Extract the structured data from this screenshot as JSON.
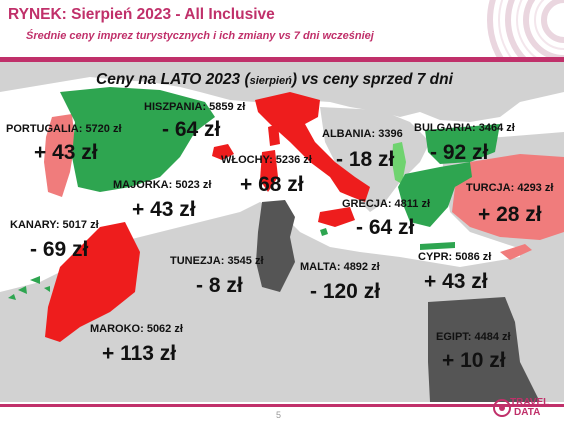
{
  "header": {
    "title": "RYNEK: Sierpień 2023 - All Inclusive",
    "subtitle": "Średnie ceny imprez turystycznych i ich zmiany vs 7 dni wcześniej"
  },
  "map_title": {
    "part1": "Ceny na LATO 2023 (",
    "highlight": "sierpień",
    "part2": ") vs ceny sprzed 7 dni"
  },
  "colors": {
    "brand": "#c0306a",
    "increase": "#ee1d1d",
    "decrease": "#2ea550",
    "no_change": "#555555",
    "land": "#d2d2d2",
    "sea": "#ffffff",
    "increase_light": "#f07c7c",
    "decrease_light": "#6fd36f"
  },
  "destinations": [
    {
      "key": "portugalia",
      "label": "PORTUGALIA: 5720 zł",
      "change": "+ 43 zł"
    },
    {
      "key": "hiszpania",
      "label": "HISZPANIA: 5859 zł",
      "change": "- 64 zł"
    },
    {
      "key": "majorka",
      "label": "MAJORKA: 5023 zł",
      "change": "+ 43 zł"
    },
    {
      "key": "wlochy",
      "label": "WŁOCHY: 5236 zł",
      "change": "+ 68 zł"
    },
    {
      "key": "albania",
      "label": "ALBANIA: 3396",
      "change": "- 18 zł"
    },
    {
      "key": "bulgaria",
      "label": "BULGARIA: 3464 zł",
      "change": "- 92 zł"
    },
    {
      "key": "turcja",
      "label": "TURCJA: 4293 zł",
      "change": "+ 28 zł"
    },
    {
      "key": "grecja",
      "label": "GRECJA: 4811 zł",
      "change": "- 64 zł"
    },
    {
      "key": "kanary",
      "label": "KANARY: 5017 zł",
      "change": "- 69 zł"
    },
    {
      "key": "tunezja",
      "label": "TUNEZJA: 3545 zł",
      "change": "- 8 zł"
    },
    {
      "key": "malta",
      "label": "MALTA: 4892 zł",
      "change": "- 120 zł"
    },
    {
      "key": "cypr",
      "label": "CYPR: 5086 zł",
      "change": "+ 43 zł"
    },
    {
      "key": "maroko",
      "label": "MAROKO: 5062 zł",
      "change": "+ 113 zł"
    },
    {
      "key": "egipt",
      "label": "EGIPT: 4484 zł",
      "change": "+ 10 zł"
    }
  ],
  "footer": {
    "page_number": "5",
    "logo_line1": "TRAVEL",
    "logo_line2": "DATA"
  }
}
